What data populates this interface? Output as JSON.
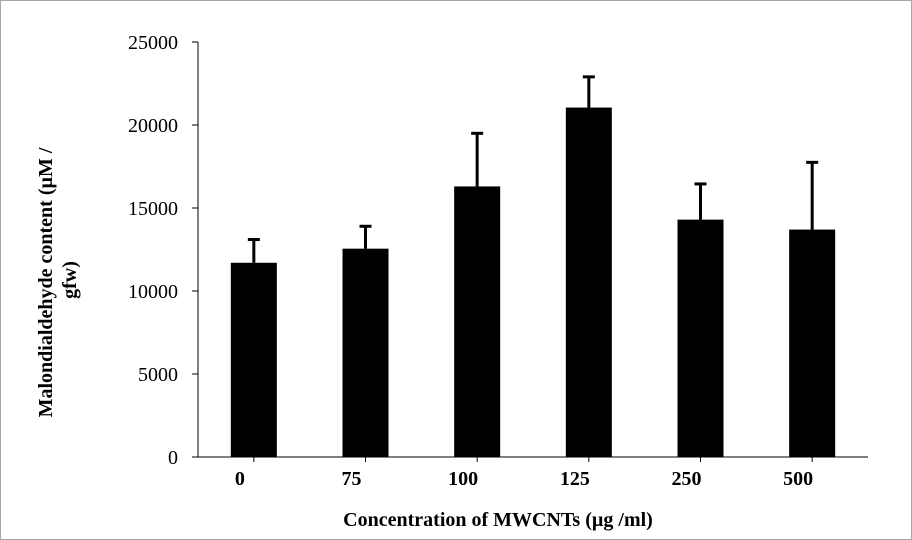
{
  "chart_data": {
    "type": "bar",
    "title": "",
    "xlabel": "Concentration of MWCNTs (µg /ml)",
    "ylabel_lines": [
      "Malondialdehyde content (µM /",
      "gfw)"
    ],
    "categories": [
      "0",
      "75",
      "100",
      "125",
      "250",
      "500"
    ],
    "values": [
      11700,
      12550,
      16300,
      21050,
      14300,
      13700
    ],
    "error_upper": [
      1400,
      1350,
      3200,
      1850,
      2150,
      4050
    ],
    "ylim": [
      0,
      25000
    ],
    "yticks": [
      "0",
      "5000",
      "10000",
      "15000",
      "20000",
      "25000"
    ],
    "grid": false,
    "legend": "none",
    "bar_color": "#000000"
  }
}
